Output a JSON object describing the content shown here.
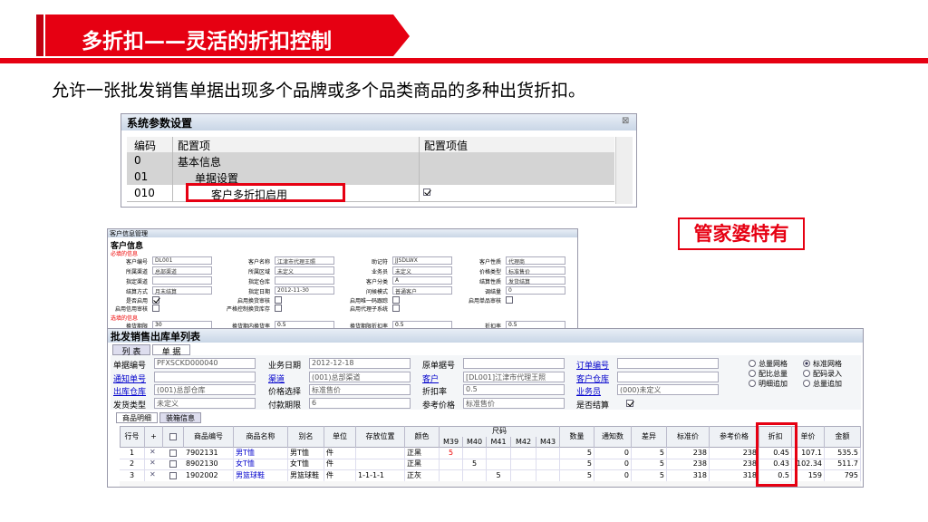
{
  "header": {
    "title": "多折扣——灵活的折扣控制",
    "subtitle": "允许一张批发销售单据出现多个品牌或多个品类商品的多种出货折扣。"
  },
  "badge": "管家婆特有",
  "sys_params": {
    "title": "系统参数设置",
    "columns": [
      "编码",
      "配置项",
      "配置项值"
    ],
    "rows": [
      {
        "code": "0",
        "item": "基本信息"
      },
      {
        "code": "01",
        "item": "单据设置"
      },
      {
        "code": "010",
        "item": "客户多折扣启用",
        "checked": true
      }
    ]
  },
  "customer": {
    "title": "客户信息管理",
    "section": "客户信息",
    "required_label": "必填的信息",
    "fields": [
      {
        "label": "客户编号",
        "value": "DL001"
      },
      {
        "label": "客户名称",
        "value": "江津市代理王照"
      },
      {
        "label": "助记符",
        "value": "JJSDLWX"
      },
      {
        "label": "客户性质",
        "value": "代理商"
      },
      {
        "label": "所属渠道",
        "value": "总部渠道"
      },
      {
        "label": "所属区域",
        "value": "未定义"
      },
      {
        "label": "业务员",
        "value": "未定义"
      },
      {
        "label": "价格类型",
        "value": "标准售价"
      },
      {
        "label": "指定渠道"
      },
      {
        "label": "指定仓库"
      },
      {
        "label": "客户分类",
        "value": "A"
      },
      {
        "label": "结算性质",
        "value": "发货结算"
      },
      {
        "label": "结算方式",
        "value": "月末结算"
      },
      {
        "label": "指定日期",
        "value": "2012-11-30"
      },
      {
        "label": "问候模式",
        "value": "普通客户"
      },
      {
        "label": "调结量",
        "value": "0"
      }
    ],
    "checkboxes": [
      {
        "label": "是否启用",
        "checked": true
      },
      {
        "label": "启用换货审核",
        "checked": false
      },
      {
        "label": "启用唯一码跟踪",
        "checked": false
      },
      {
        "label": "启用单品审核",
        "checked": false
      },
      {
        "label": "启用信用审核",
        "checked": false
      },
      {
        "label": "严格控制换货库存",
        "checked": false
      },
      {
        "label": "启用代理子系统",
        "checked": false
      }
    ],
    "optional_label": "选填的信息",
    "optional_fields": [
      {
        "label": "换货期限",
        "value": "30"
      },
      {
        "label": "换货期内换货率",
        "value": "0.5"
      },
      {
        "label": "换货期限折扣率",
        "value": "0.5"
      },
      {
        "label": "折扣率",
        "value": "0.5"
      }
    ]
  },
  "order": {
    "title": "批发销售出库单列表",
    "tabs": [
      "列 表",
      "单 据"
    ],
    "fields": [
      {
        "label": "单据编号",
        "value": "PFXSCKD000040"
      },
      {
        "label": "业务日期",
        "value": "2012-12-18"
      },
      {
        "label": "原单据号"
      },
      {
        "label": "订单编号",
        "link": true
      },
      {
        "label": "通知单号",
        "link": true
      },
      {
        "label": "渠道",
        "value": "(001)总部渠道",
        "link": true
      },
      {
        "label": "客户",
        "value": "[DL001]江津市代理王照",
        "link": true
      },
      {
        "label": "客户仓库",
        "link": true
      },
      {
        "label": "出库仓库",
        "value": "(001)总部仓库",
        "link": true
      },
      {
        "label": "价格选择",
        "value": "标准售价"
      },
      {
        "label": "折扣率",
        "value": "0.5"
      },
      {
        "label": "业务员",
        "value": "(000)未定义",
        "link": true
      },
      {
        "label": "发货类型",
        "value": "未定义"
      },
      {
        "label": "付款期限",
        "value": "6"
      },
      {
        "label": "参考价格",
        "value": "标准售价"
      },
      {
        "label": "是否结算",
        "checked": true
      }
    ],
    "view_options": [
      "总量网格",
      "标准网格",
      "配比总量",
      "配码录入",
      "明细追加",
      "总量追加"
    ],
    "detail_tabs": [
      "商品明细",
      "装箱信息"
    ],
    "table": {
      "columns_left": [
        "行号",
        "+",
        "商品编号",
        "商品名称",
        "别名",
        "单位",
        "存放位置",
        "颜色"
      ],
      "size_group": "尺码",
      "sizes": [
        "M39",
        "M40",
        "M41",
        "M42",
        "M43"
      ],
      "columns_right": [
        "数量",
        "通知数",
        "差异",
        "标准价",
        "参考价格",
        "折扣",
        "单价",
        "金额"
      ],
      "rows": [
        {
          "no": "1",
          "code": "7902131",
          "name": "男T恤",
          "alias": "男T恤",
          "unit": "件",
          "color": "正黑",
          "size_index": 0,
          "size_qty": "5",
          "right": [
            "5",
            "0",
            "5",
            "238",
            "238",
            "0.45",
            "107.1",
            "535.5"
          ]
        },
        {
          "no": "2",
          "code": "8902130",
          "name": "女T恤",
          "alias": "女T恤",
          "unit": "件",
          "color": "正黑",
          "size_index": 1,
          "size_qty": "5",
          "right": [
            "5",
            "0",
            "5",
            "238",
            "238",
            "0.43",
            "102.34",
            "511.7"
          ]
        },
        {
          "no": "3",
          "code": "1902002",
          "name": "男篮球鞋",
          "alias": "男篮球鞋",
          "unit": "件",
          "location": "1-1-1-1",
          "color": "正灰",
          "size_index": 2,
          "size_qty": "5",
          "right": [
            "5",
            "0",
            "5",
            "318",
            "318",
            "0.5",
            "159",
            "795"
          ]
        }
      ]
    }
  }
}
